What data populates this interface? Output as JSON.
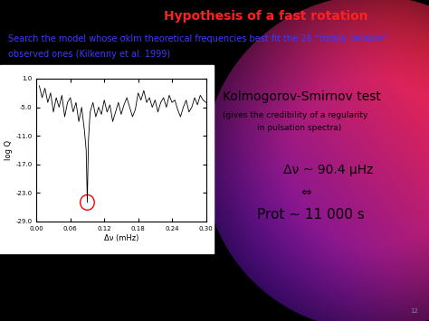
{
  "slide": {
    "title": "Hypothesis of a fast rotation",
    "intro": [
      "Search the model whose σklm theoretical frequencies best fit the 28 “totally reliable”",
      "observed ones (Kilkenny et al. 1999)"
    ],
    "notes": [
      "Kolmogorov-Smirnov test",
      "(gives the credibility of a regularity",
      "in pulsation spectra)",
      "Δν ~ 90.4 μHz",
      "⇔",
      "Prot ~ 11 000 s"
    ],
    "page": "12"
  },
  "chart_data": {
    "type": "line",
    "xlabel": "Δν (mHz)",
    "ylabel": "log Q",
    "color": "#000000",
    "x": [
      0.005,
      0.01,
      0.015,
      0.02,
      0.025,
      0.03,
      0.035,
      0.04,
      0.045,
      0.05,
      0.055,
      0.06,
      0.065,
      0.07,
      0.075,
      0.08,
      0.085,
      0.088,
      0.09,
      0.092,
      0.095,
      0.1,
      0.105,
      0.11,
      0.115,
      0.12,
      0.125,
      0.13,
      0.135,
      0.14,
      0.145,
      0.15,
      0.155,
      0.16,
      0.165,
      0.17,
      0.175,
      0.18,
      0.185,
      0.19,
      0.195,
      0.2,
      0.205,
      0.21,
      0.215,
      0.22,
      0.225,
      0.23,
      0.235,
      0.24,
      0.245,
      0.25,
      0.255,
      0.26,
      0.265,
      0.27,
      0.275,
      0.28,
      0.285,
      0.29,
      0.295,
      0.3
    ],
    "values": [
      -0.5,
      -3,
      -1,
      -4,
      -2,
      -6,
      -3,
      -5,
      -2.5,
      -7,
      -4,
      -3,
      -6,
      -4,
      -8,
      -5,
      -10,
      -14,
      -25,
      -12,
      -6,
      -4,
      -7,
      -5,
      -6.5,
      -3.5,
      -6,
      -4.5,
      -8,
      -6,
      -4,
      -6.5,
      -4.5,
      -3,
      -5,
      -7,
      -5.5,
      -2,
      -3.5,
      -1.5,
      -4,
      -3,
      -5,
      -3.5,
      -6,
      -4,
      -3,
      -5,
      -2.5,
      -4,
      -3.5,
      -5.5,
      -7,
      -5,
      -3.5,
      -6,
      -5,
      -3,
      -4.5,
      -2.5,
      -3.5,
      -4
    ],
    "xlim": [
      0,
      0.3
    ],
    "xticks": [
      {
        "value": 0,
        "label": "0.00"
      },
      {
        "value": 0.06,
        "label": "0.06"
      },
      {
        "value": 0.12,
        "label": "0.12"
      },
      {
        "value": 0.18,
        "label": "0.18"
      },
      {
        "value": 0.24,
        "label": "0.24"
      },
      {
        "value": 0.3,
        "label": "0.30"
      }
    ],
    "ylim": [
      -29,
      1
    ],
    "yticks": [
      {
        "value": -29,
        "label": "-29.0"
      },
      {
        "value": -23,
        "label": "-23.0"
      },
      {
        "value": -17,
        "label": "-17.0"
      },
      {
        "value": -11,
        "label": "-11.0"
      },
      {
        "value": -5,
        "label": "-5.0"
      },
      {
        "value": 1,
        "label": "1.0"
      }
    ]
  }
}
